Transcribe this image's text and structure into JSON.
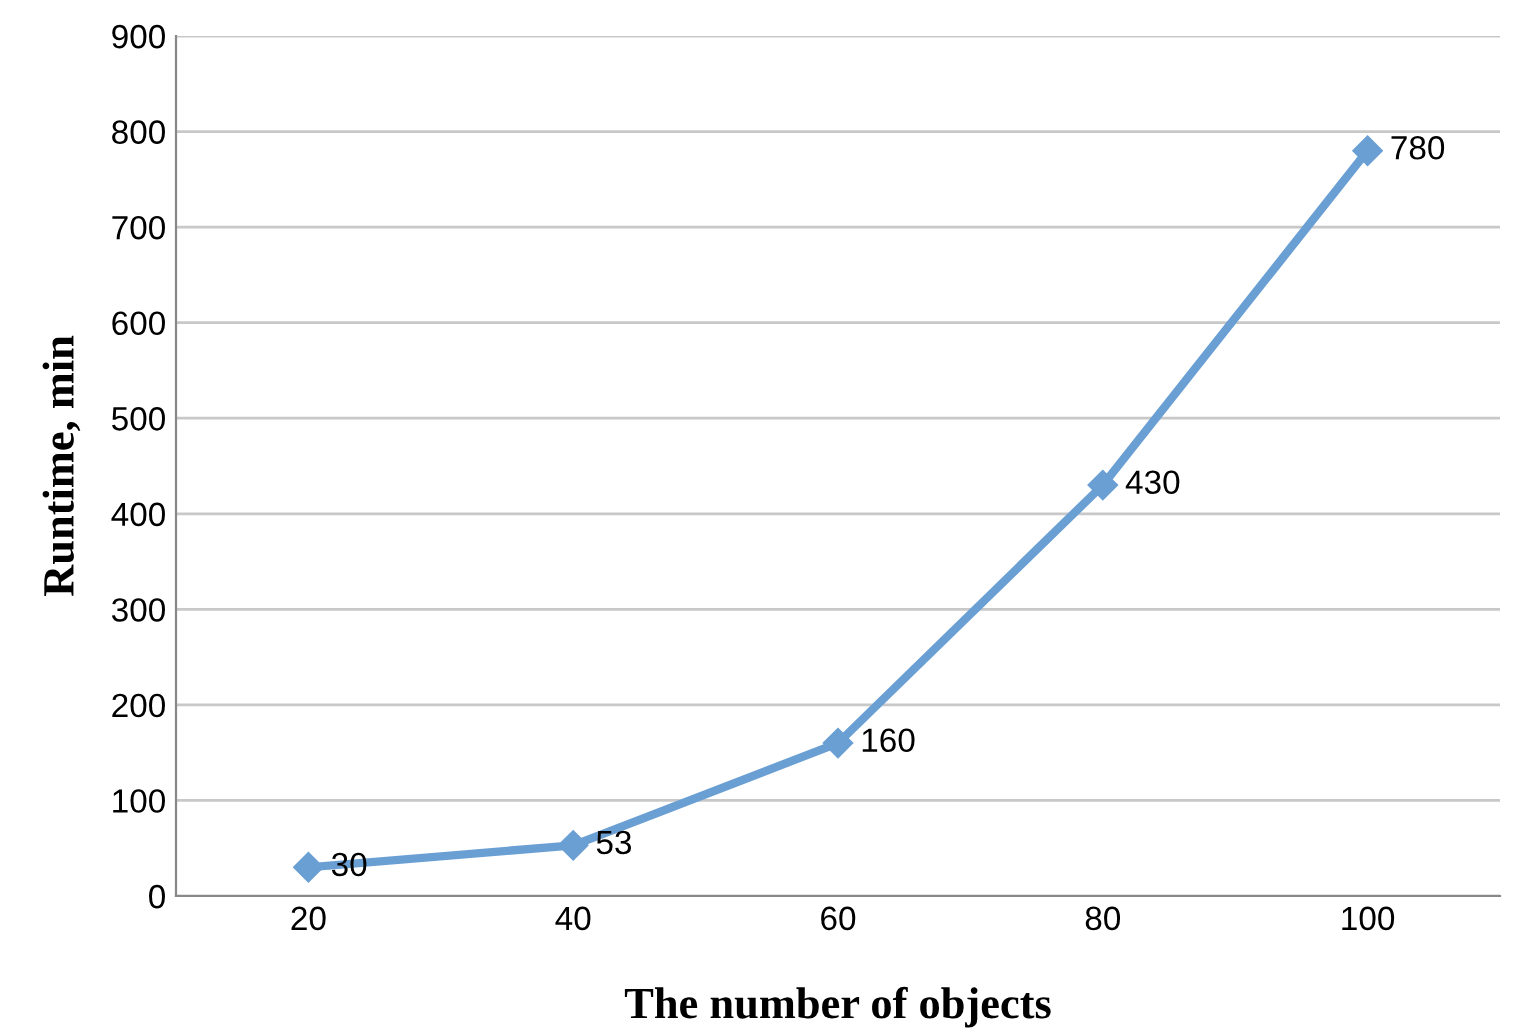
{
  "chart_data": {
    "type": "line",
    "xlabel": "The number of objects",
    "ylabel": "Runtime, min",
    "categories": [
      "20",
      "40",
      "60",
      "80",
      "100"
    ],
    "series": [
      {
        "color": "#6a9fd4",
        "values": [
          30,
          53,
          160,
          430,
          780
        ]
      }
    ],
    "ylim": [
      0,
      900
    ],
    "yticks": [
      0,
      100,
      200,
      300,
      400,
      500,
      600,
      700,
      800,
      900
    ],
    "grid": "y",
    "marker": "diamond",
    "line_style": "solid",
    "data_labels": true,
    "legend": false
  }
}
